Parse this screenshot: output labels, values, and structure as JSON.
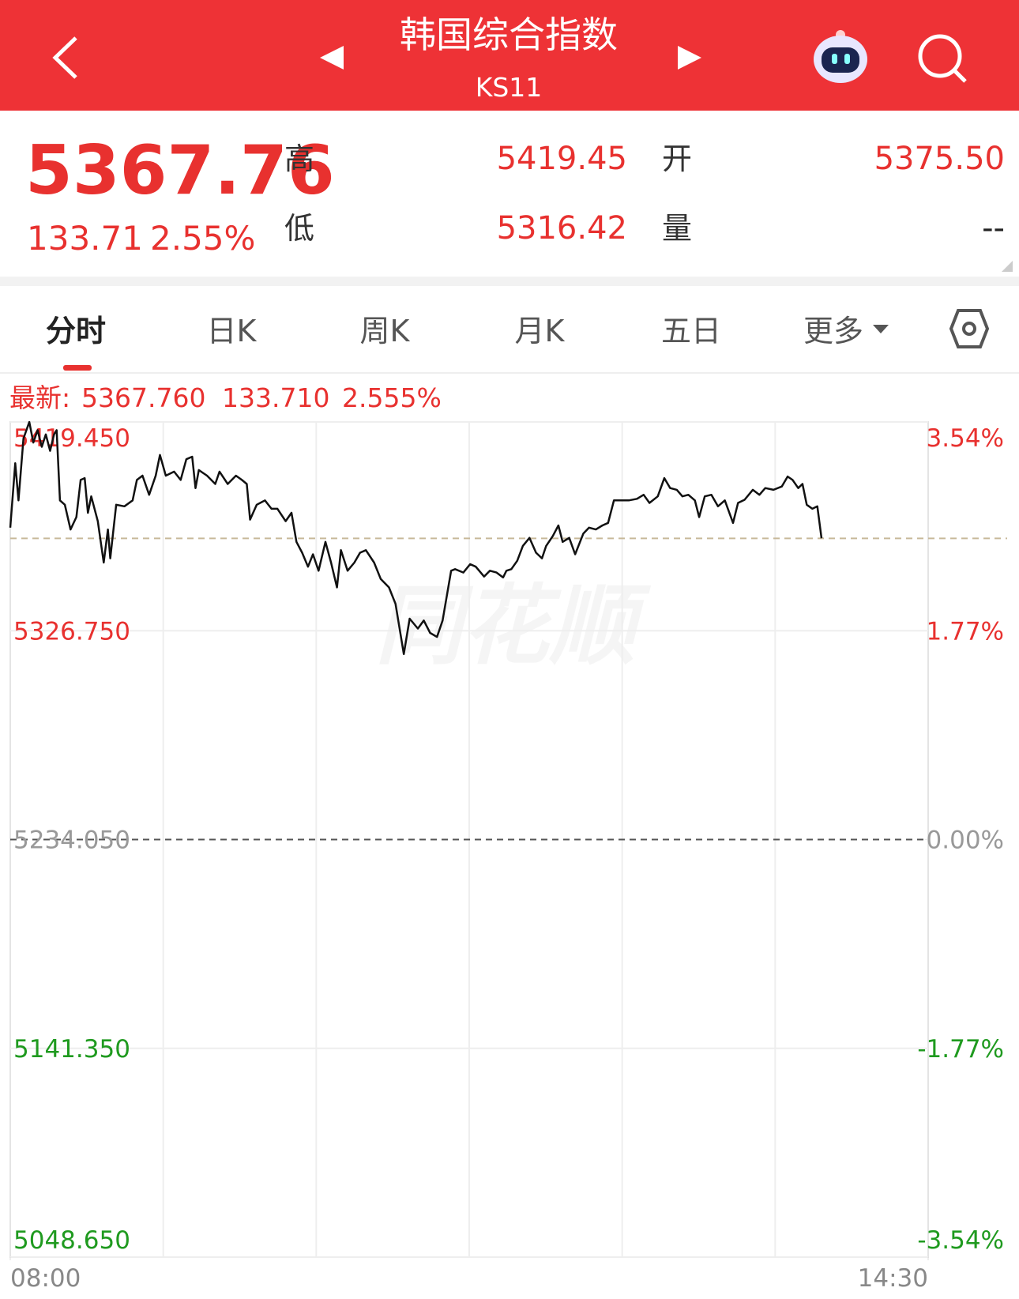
{
  "header": {
    "title": "韩国综合指数",
    "code": "KS11"
  },
  "quote": {
    "price": "5367.76",
    "change": "133.71",
    "change_pct": "2.55%",
    "high_label": "高",
    "high": "5419.45",
    "low_label": "低",
    "low": "5316.42",
    "open_label": "开",
    "open": "5375.50",
    "volume_label": "量",
    "volume": "--"
  },
  "tabs": [
    "分时",
    "日K",
    "周K",
    "月K",
    "五日",
    "更多"
  ],
  "latest": {
    "label": "最新:",
    "price": "5367.760",
    "change": "133.710",
    "change_pct": "2.555%"
  },
  "watermark": "同花顺",
  "chart_data": {
    "type": "line",
    "color": "#111111",
    "up_color": "#e8312f",
    "down_color": "#1f9a1f",
    "flat_color": "#999999",
    "grid": true,
    "latest_price": 5367.76,
    "x": [
      0,
      2.1,
      3.5,
      5.6,
      8.1,
      9.8,
      11.6,
      13.4,
      15.1,
      16.9,
      18.6,
      19.7,
      21.1,
      23.2,
      25.6,
      28.1,
      29.9,
      31.6,
      33.0,
      34.4,
      37.2,
      39.7,
      41.5,
      42.5,
      45.0,
      48.5,
      52.0,
      53.8,
      56.2,
      59.0,
      61.8,
      63.6,
      66.1,
      69.6,
      72.4,
      74.8,
      77.3,
      78.7,
      80.1,
      83.6,
      87.1,
      88.9,
      92.4,
      95.9,
      98.4,
      100.5,
      101.9,
      104.7,
      108.2,
      111.0,
      113.5,
      117.0,
      119.5,
      121.6,
      124.0,
      126.5,
      128.6,
      131.0,
      133.9,
      136.3,
      138.8,
      140.5,
      143.3,
      146.2,
      148.6,
      151.1,
      154.6,
      157.4,
      160.9,
      163.7,
      167.2,
      169.7,
      173.2,
      175.7,
      178.4,
      181.3,
      183.7,
      187.3,
      189.0,
      192.5,
      195.4,
      197.8,
      201.3,
      203.8,
      206.6,
      209.4,
      210.8,
      212.9,
      215.4,
      217.8,
      220.6,
      223.4,
      225.9,
      227.7,
      230.5,
      232.9,
      234.7,
      237.5,
      240.0,
      243.5,
      245.9,
      248.8,
      251.6,
      254.0,
      256.5,
      260.0,
      262.8,
      266.3,
      269.1,
      271.6,
      275.1,
      277.9,
      280.4,
      283.2,
      285.6,
      288.1,
      290.9,
      292.7,
      295.1,
      297.9,
      300.7,
      303.6,
      307.1,
      309.2,
      312.0,
      315.5,
      318.3,
      320.8,
      324.3,
      327.8,
      330.3,
      332.4,
      334.8,
      336.6,
      338.4,
      340.8,
      342.9,
      344.7
    ],
    "values": [
      5372.5,
      5401.1,
      5384.6,
      5412.1,
      5419.4,
      5410.3,
      5415.8,
      5408.4,
      5413.9,
      5406.6,
      5413.9,
      5415.8,
      5384.6,
      5382.7,
      5371.7,
      5377.2,
      5393.7,
      5394.5,
      5379.1,
      5386.4,
      5375.4,
      5357.0,
      5371.7,
      5358.9,
      5382.7,
      5382.0,
      5384.6,
      5393.7,
      5395.6,
      5387.1,
      5395.6,
      5404.8,
      5395.6,
      5397.4,
      5393.7,
      5402.9,
      5404.0,
      5390.1,
      5398.1,
      5395.6,
      5391.9,
      5397.4,
      5391.9,
      5395.6,
      5393.7,
      5391.9,
      5376.1,
      5382.7,
      5384.6,
      5380.9,
      5380.9,
      5375.4,
      5379.1,
      5366.2,
      5361.4,
      5355.2,
      5360.7,
      5353.4,
      5366.2,
      5357.0,
      5346.0,
      5362.5,
      5353.4,
      5357.0,
      5361.4,
      5362.5,
      5357.0,
      5349.7,
      5346.0,
      5338.7,
      5316.4,
      5332.1,
      5327.7,
      5331.3,
      5325.8,
      5324.0,
      5331.3,
      5353.4,
      5354.1,
      5352.6,
      5356.3,
      5355.2,
      5350.8,
      5353.4,
      5352.6,
      5350.4,
      5353.4,
      5354.1,
      5357.8,
      5364.4,
      5368.0,
      5361.4,
      5358.9,
      5364.4,
      5368.8,
      5373.5,
      5366.2,
      5368.0,
      5360.7,
      5369.9,
      5372.5,
      5371.7,
      5373.5,
      5374.6,
      5384.6,
      5384.6,
      5384.6,
      5385.3,
      5387.1,
      5383.5,
      5386.4,
      5394.5,
      5390.1,
      5389.3,
      5386.4,
      5387.1,
      5384.6,
      5377.2,
      5386.4,
      5387.1,
      5382.0,
      5384.6,
      5374.6,
      5383.5,
      5384.9,
      5389.3,
      5387.1,
      5390.1,
      5389.3,
      5390.8,
      5395.2,
      5393.7,
      5390.1,
      5391.9,
      5382.7,
      5380.9,
      5382.0,
      5367.8
    ],
    "xlim": [
      0,
      390
    ],
    "xticks": [
      {
        "value": 0,
        "label": "08:00"
      },
      {
        "value": 390,
        "label": "14:30"
      }
    ],
    "ylim": [
      5048.65,
      5419.45
    ],
    "yticks": [
      {
        "value": 5048.65,
        "label": "5048.650"
      },
      {
        "value": 5141.35,
        "label": "5141.350"
      },
      {
        "value": 5234.05,
        "label": "5234.050"
      },
      {
        "value": 5326.75,
        "label": "5326.750"
      },
      {
        "value": 5419.45,
        "label": "5419.450"
      }
    ],
    "y2lim": [
      -3.54,
      3.54
    ],
    "y2ticks": [
      {
        "value": -3.54,
        "label": "-3.54%"
      },
      {
        "value": -1.77,
        "label": "-1.77%"
      },
      {
        "value": 0,
        "label": "0.00%"
      },
      {
        "value": 1.77,
        "label": "1.77%"
      },
      {
        "value": 3.54,
        "label": "3.54%"
      }
    ]
  }
}
